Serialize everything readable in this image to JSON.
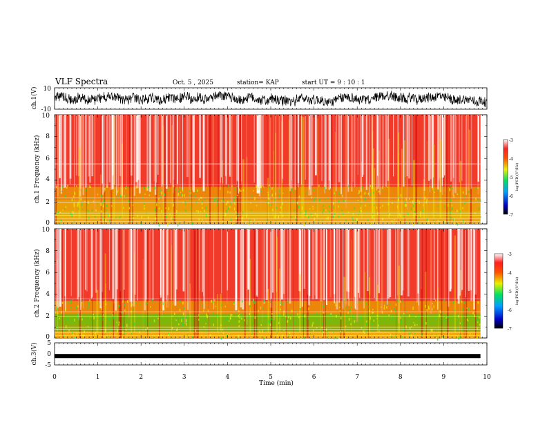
{
  "header": {
    "title": "VLF Spectra",
    "date": "Oct. 5 , 2025",
    "station": "station= KAP",
    "start": "start  UT =   9 : 10 : 1"
  },
  "chart_data": [
    {
      "type": "line",
      "name": "ch1-waveform",
      "ylabel": "ch.1(V)",
      "ylim": [
        -10,
        10
      ],
      "yticks": [
        "10",
        "-10"
      ],
      "xlim": [
        0,
        10
      ],
      "description_values": "noisy waveform oscillating roughly between -8 and 8 V"
    },
    {
      "type": "heatmap",
      "name": "ch1-spectrogram",
      "ylabel": "ch.1 Frequency  (kHz)",
      "ylim": [
        0,
        10
      ],
      "yticks": [
        "0",
        "2",
        "4",
        "6",
        "8",
        "10"
      ],
      "xlim": [
        0,
        9.85
      ],
      "colorbar": {
        "label": "log(PSD)(V²/Hz)",
        "range": [
          -7,
          -3
        ],
        "ticks": [
          "-3",
          "-4",
          "-5",
          "-6",
          "-7"
        ]
      }
    },
    {
      "type": "heatmap",
      "name": "ch2-spectrogram",
      "ylabel": "ch.2 Frequency  (kHz)",
      "ylim": [
        0,
        10
      ],
      "yticks": [
        "0",
        "2",
        "4",
        "6",
        "8",
        "10"
      ],
      "xlim": [
        0,
        9.85
      ],
      "colorbar": {
        "label": "log(PSD)(V²/Hz)",
        "range": [
          -7,
          -3
        ],
        "ticks": [
          "-3",
          "-4",
          "-5",
          "-6",
          "-7"
        ]
      }
    },
    {
      "type": "line",
      "name": "ch3-waveform",
      "ylabel": "ch.3(V)",
      "ylim": [
        -5,
        5
      ],
      "yticks": [
        "5",
        "0",
        "-5"
      ],
      "xlim": [
        0,
        10
      ],
      "level": -1
    }
  ],
  "xaxis": {
    "label": "Time  (min)",
    "ticks": [
      "0",
      "1",
      "2",
      "3",
      "4",
      "5",
      "6",
      "7",
      "8",
      "9",
      "10"
    ],
    "range": [
      0,
      10
    ]
  },
  "colors": {
    "background": "#ffffff",
    "axis": "#000000",
    "waveform": "#000000"
  }
}
